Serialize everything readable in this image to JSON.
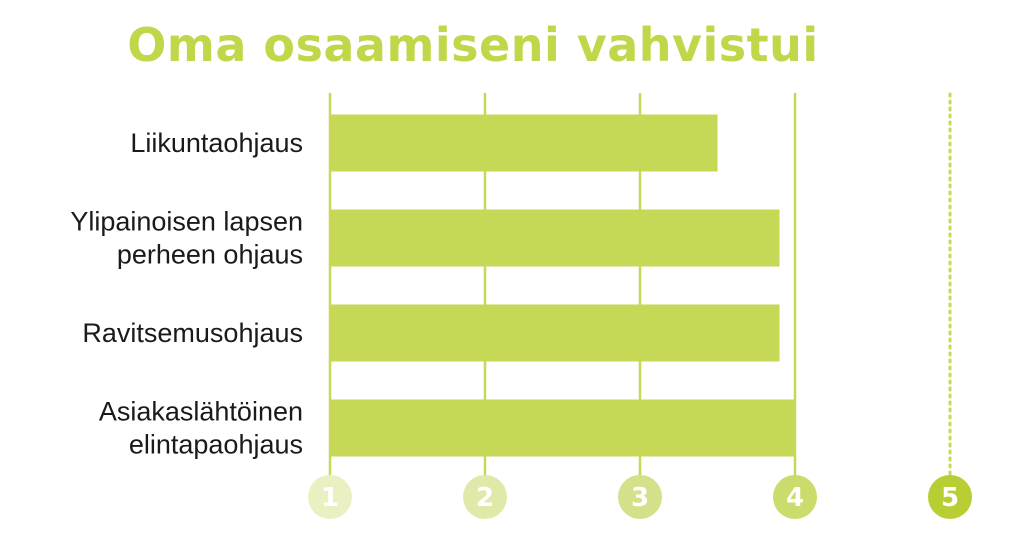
{
  "chart_data": {
    "type": "bar",
    "orientation": "horizontal",
    "title": "Oma osaamiseni vahvistui",
    "categories": [
      [
        "Liikuntaohjaus"
      ],
      [
        "Ylipainoisen lapsen",
        "perheen ohjaus"
      ],
      [
        "Ravitsemusohjaus"
      ],
      [
        "Asiakaslähtöinen",
        "elintapaohjaus"
      ]
    ],
    "values": [
      3.5,
      3.9,
      3.9,
      4.0
    ],
    "xlim": [
      1,
      5
    ],
    "ticks": [
      "1",
      "2",
      "3",
      "4",
      "5"
    ],
    "grid": true,
    "colors": {
      "bar": "#c7d756",
      "title": "#c2d64a",
      "grid": "#c7d756",
      "tick_badges": [
        "#eaf0c2",
        "#e0e9a8",
        "#d5e18a",
        "#cbdb6c",
        "#b9ce33"
      ]
    }
  }
}
